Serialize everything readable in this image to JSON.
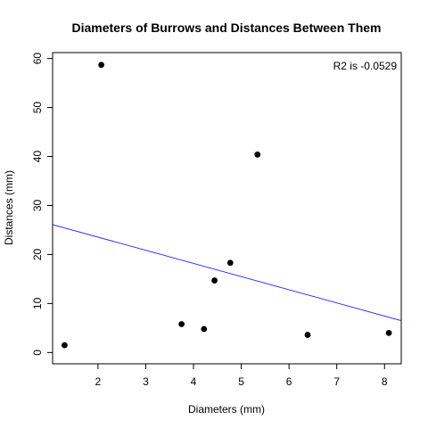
{
  "chart_data": {
    "type": "scatter",
    "title": "Diameters of Burrows and Distances Between Them",
    "xlabel": "Diameters (mm)",
    "ylabel": "Distances (mm)",
    "xlim": [
      1.05,
      8.35
    ],
    "ylim": [
      -2.3,
      61.2
    ],
    "x_ticks": [
      2,
      3,
      4,
      5,
      6,
      7,
      8
    ],
    "y_ticks": [
      0,
      10,
      20,
      30,
      40,
      50,
      60
    ],
    "grid": false,
    "points": [
      {
        "x": 1.3,
        "y": 1.5
      },
      {
        "x": 2.07,
        "y": 58.7
      },
      {
        "x": 3.75,
        "y": 5.8
      },
      {
        "x": 4.22,
        "y": 4.8
      },
      {
        "x": 4.44,
        "y": 14.7
      },
      {
        "x": 4.77,
        "y": 18.3
      },
      {
        "x": 5.34,
        "y": 40.4
      },
      {
        "x": 6.39,
        "y": 3.6
      },
      {
        "x": 8.09,
        "y": 4.0
      }
    ],
    "fit_line": {
      "color": "#3333ff",
      "x": [
        1.05,
        8.35
      ],
      "y": [
        26.1,
        6.5
      ]
    },
    "annotation": "R2 is -0.0529",
    "annotation_position": "top-right",
    "point_color": "#000000"
  }
}
